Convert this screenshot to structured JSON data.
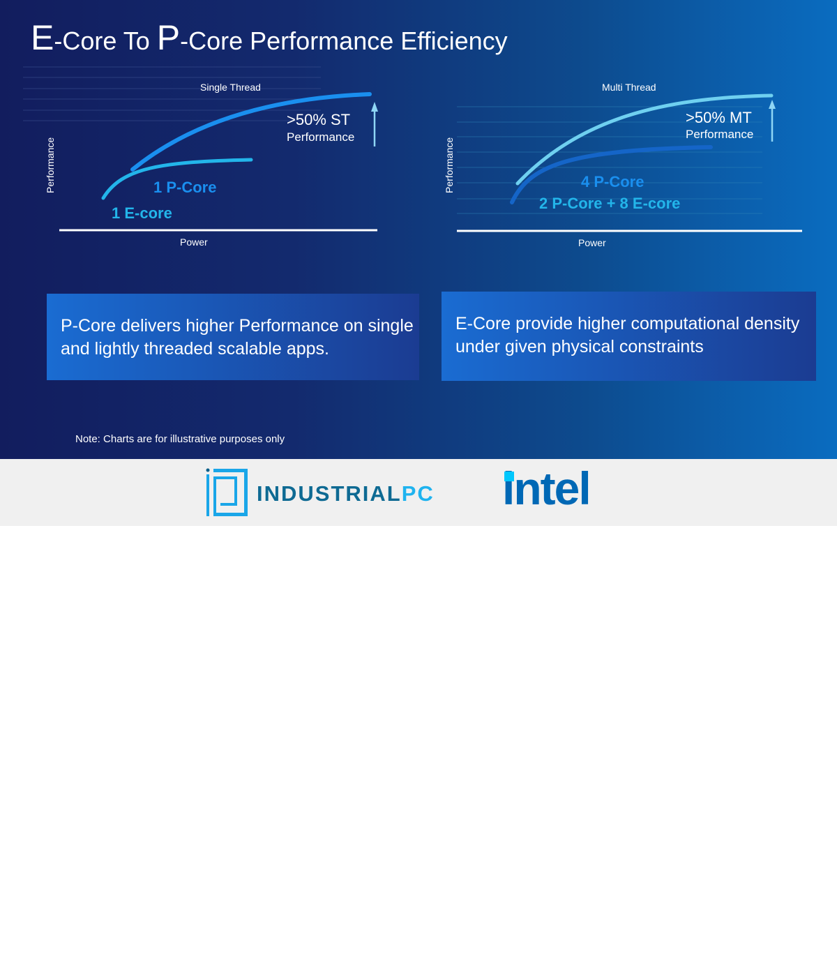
{
  "title": {
    "e_letter": "E",
    "part1": "-Core To ",
    "p_letter": "P",
    "part2": "-Core Performance Efficiency"
  },
  "single_thread": {
    "title": "Single Thread",
    "y_label": "Performance",
    "x_label": "Power",
    "callout_main": ">50% ST",
    "callout_sub": "Performance",
    "series": [
      "1 P-Core",
      "1 E-core"
    ]
  },
  "multi_thread": {
    "title": "Multi Thread",
    "y_label": "Performance",
    "x_label": "Power",
    "callout_main": ">50% MT",
    "callout_sub": "Performance",
    "series": [
      "4 P-Core",
      "2 P-Core + 8 E-core"
    ]
  },
  "boxes": [
    "P-Core delivers higher Performance on single and lightly threaded scalable apps.",
    "E-Core provide higher computational density under given physical constraints"
  ],
  "note": "Note: Charts are for illustrative purposes only",
  "logos": {
    "industrialpc_a": "INDUSTRIAL",
    "industrialpc_b": "PC",
    "intel": "intel"
  },
  "colors": {
    "p_core": "#1a8fef",
    "e_core": "#23b5ea",
    "mt_top": "#6fd0f0",
    "mt_bottom": "#1565c8",
    "intel_blue": "#0068b5"
  }
}
